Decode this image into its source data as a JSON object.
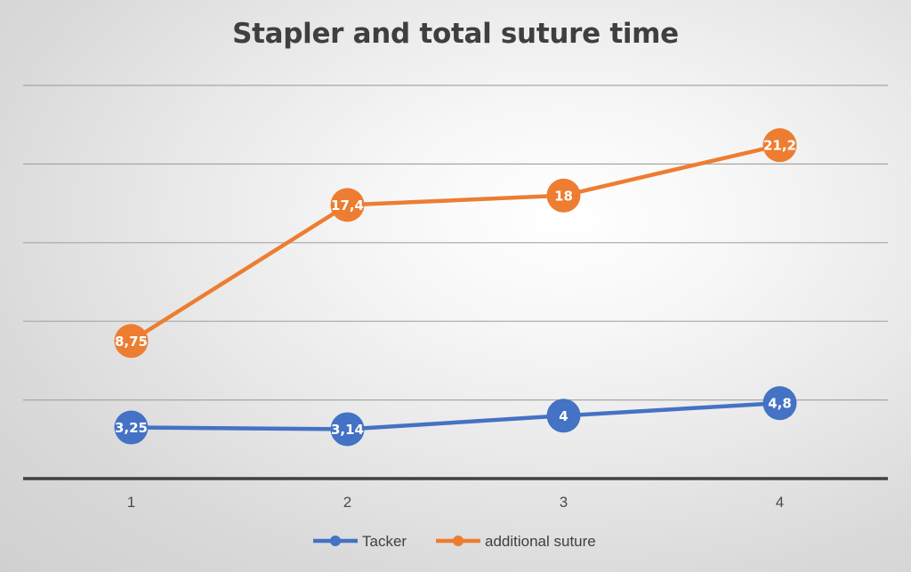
{
  "chart_data": {
    "type": "line",
    "title": "Stapler and total suture time",
    "categories": [
      "1",
      "2",
      "3",
      "4"
    ],
    "series": [
      {
        "name": "Tacker",
        "values": [
          3.25,
          3.14,
          4,
          4.8
        ],
        "labels": [
          "3,25",
          "3,14",
          "4",
          "4,8"
        ],
        "color": "#4472c4"
      },
      {
        "name": "additional suture",
        "values": [
          8.75,
          17.4,
          18,
          21.2
        ],
        "labels": [
          "8,75",
          "17,4",
          "18",
          "21,2"
        ],
        "color": "#ed7d31"
      }
    ],
    "ylim": [
      0,
      25
    ],
    "grid": true,
    "legend": "bottom",
    "xlabel": "",
    "ylabel": ""
  }
}
